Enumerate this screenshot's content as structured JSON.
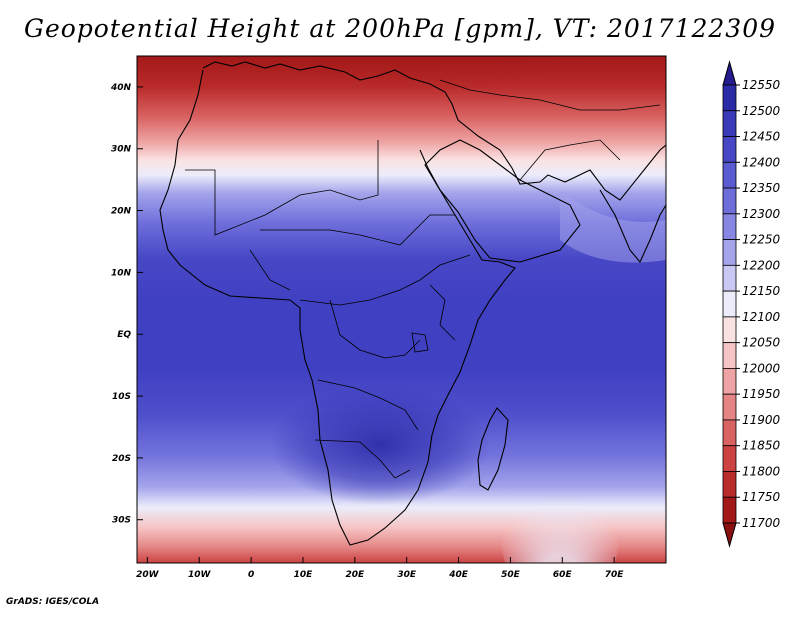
{
  "title": "Geopotential Height at 200hPa [gpm], VT: 2017122309",
  "footer": "GrADS: IGES/COLA",
  "map": {
    "variable": "Geopotential Height",
    "level": "200hPa",
    "units": "gpm",
    "valid_time": "2017122309",
    "lon_range": [
      -22,
      80
    ],
    "lat_range": [
      -37,
      45
    ],
    "lon_ticks": [
      {
        "v": -20,
        "label": "20W"
      },
      {
        "v": -10,
        "label": "10W"
      },
      {
        "v": 0,
        "label": "0"
      },
      {
        "v": 10,
        "label": "10E"
      },
      {
        "v": 20,
        "label": "20E"
      },
      {
        "v": 30,
        "label": "30E"
      },
      {
        "v": 40,
        "label": "40E"
      },
      {
        "v": 50,
        "label": "50E"
      },
      {
        "v": 60,
        "label": "60E"
      },
      {
        "v": 70,
        "label": "70E"
      }
    ],
    "lat_ticks": [
      {
        "v": 40,
        "label": "40N"
      },
      {
        "v": 30,
        "label": "30N"
      },
      {
        "v": 20,
        "label": "20N"
      },
      {
        "v": 10,
        "label": "10N"
      },
      {
        "v": 0,
        "label": "EQ"
      },
      {
        "v": -10,
        "label": "10S"
      },
      {
        "v": -20,
        "label": "20S"
      },
      {
        "v": -30,
        "label": "30S"
      }
    ]
  },
  "colorbar": {
    "levels": [
      12550,
      12500,
      12450,
      12400,
      12350,
      12300,
      12250,
      12200,
      12150,
      12100,
      12050,
      12000,
      11950,
      11900,
      11850,
      11800,
      11750,
      11700
    ],
    "colors": [
      "#231b8e",
      "#2c2ba6",
      "#3a3ab8",
      "#4747c6",
      "#5a5ad1",
      "#6e6edb",
      "#8787e3",
      "#a4a4eb",
      "#c8c8f3",
      "#ececfb",
      "#fbe2e2",
      "#f6c4c4",
      "#eea4a4",
      "#e48484",
      "#d96262",
      "#cc4242",
      "#b92a2a",
      "#a31818",
      "#8a1010"
    ]
  }
}
